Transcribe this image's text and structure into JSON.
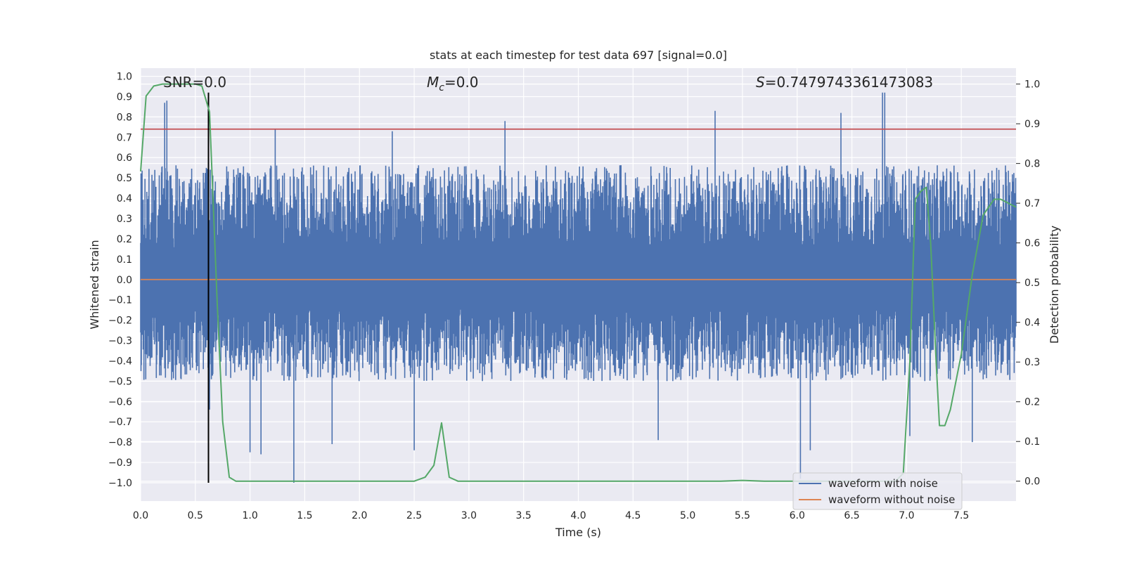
{
  "chart_data": {
    "type": "line",
    "title": "stats at each timestep for test data 697 [signal=0.0]",
    "xlabel": "Time (s)",
    "ylabel": "Whitened strain",
    "y2label": "Detection probability",
    "xlim": [
      0.0,
      8.0
    ],
    "ylim": [
      -1.09,
      1.04
    ],
    "y2lim": [
      -0.05,
      1.04
    ],
    "x_ticks": [
      "0.0",
      "0.5",
      "1.0",
      "1.5",
      "2.0",
      "2.5",
      "3.0",
      "3.5",
      "4.0",
      "4.5",
      "5.0",
      "5.5",
      "6.0",
      "6.5",
      "7.0",
      "7.5"
    ],
    "y_ticks": [
      "1.0",
      "0.9",
      "0.8",
      "0.7",
      "0.6",
      "0.5",
      "0.4",
      "0.3",
      "0.2",
      "0.1",
      "0.0",
      "−0.1",
      "−0.2",
      "−0.3",
      "−0.4",
      "−0.5",
      "−0.6",
      "−0.7",
      "−0.8",
      "−0.9",
      "−1.0"
    ],
    "y2_ticks": [
      "1.0",
      "0.9",
      "0.8",
      "0.7",
      "0.6",
      "0.5",
      "0.4",
      "0.3",
      "0.2",
      "0.1",
      "0.0"
    ],
    "grid": true,
    "legend_placement": "lower-right",
    "annotations": {
      "snr": "SNR=0.0",
      "mc_symbol": "M",
      "mc_sub": "c",
      "mc_value": "=0.0",
      "s_symbol": "S",
      "s_value": "=0.7479743361473083"
    },
    "series": [
      {
        "name": "waveform with noise",
        "color": "#4c72b0",
        "kind": "noise",
        "upper_envelope_typical": 0.45,
        "lower_envelope_typical": -0.4,
        "spikes": [
          {
            "x": 0.22,
            "y": 0.87
          },
          {
            "x": 0.24,
            "y": 0.88
          },
          {
            "x": 1.23,
            "y": 0.74
          },
          {
            "x": 2.3,
            "y": 0.73
          },
          {
            "x": 3.33,
            "y": 0.78
          },
          {
            "x": 5.25,
            "y": 0.83
          },
          {
            "x": 6.4,
            "y": 0.82
          },
          {
            "x": 6.78,
            "y": 0.92
          },
          {
            "x": 6.8,
            "y": 0.92
          },
          {
            "x": 0.63,
            "y": -0.64
          },
          {
            "x": 1.0,
            "y": -0.85
          },
          {
            "x": 1.1,
            "y": -0.86
          },
          {
            "x": 1.4,
            "y": -1.0
          },
          {
            "x": 1.75,
            "y": -0.81
          },
          {
            "x": 2.5,
            "y": -0.84
          },
          {
            "x": 4.73,
            "y": -0.79
          },
          {
            "x": 6.03,
            "y": -0.98
          },
          {
            "x": 6.12,
            "y": -0.84
          },
          {
            "x": 7.03,
            "y": -0.77
          },
          {
            "x": 7.6,
            "y": -0.8
          }
        ]
      },
      {
        "name": "waveform without noise",
        "color": "#dd8452",
        "kind": "flat",
        "value": 0.0
      },
      {
        "name": "Detection probability",
        "color": "#55a868",
        "axis": "right",
        "x": [
          0.0,
          0.05,
          0.12,
          0.2,
          0.3,
          0.4,
          0.5,
          0.56,
          0.63,
          0.7,
          0.75,
          0.81,
          0.87,
          1.0,
          1.5,
          2.0,
          2.5,
          2.6,
          2.68,
          2.75,
          2.82,
          2.9,
          3.5,
          4.0,
          4.5,
          5.0,
          5.3,
          5.5,
          5.7,
          6.0,
          6.5,
          6.9,
          6.97,
          7.03,
          7.08,
          7.13,
          7.18,
          7.22,
          7.27,
          7.3,
          7.35,
          7.4,
          7.5,
          7.6,
          7.7,
          7.8,
          7.86,
          7.93,
          8.0
        ],
        "y": [
          0.78,
          0.97,
          0.995,
          1.0,
          1.0,
          1.0,
          1.0,
          0.995,
          0.93,
          0.45,
          0.15,
          0.01,
          0.0,
          0.0,
          0.0,
          0.0,
          0.0,
          0.01,
          0.04,
          0.147,
          0.01,
          0.0,
          0.0,
          0.0,
          0.0,
          0.0,
          0.0,
          0.002,
          0.0,
          0.0,
          0.0,
          0.0,
          0.02,
          0.3,
          0.71,
          0.73,
          0.74,
          0.6,
          0.3,
          0.14,
          0.14,
          0.18,
          0.32,
          0.52,
          0.67,
          0.71,
          0.71,
          0.7,
          0.69
        ]
      }
    ],
    "hlines": [
      {
        "value": 0.74,
        "color": "#c44e52",
        "axis": "left"
      }
    ],
    "vlines": [
      {
        "x": 0.62,
        "color": "#000000",
        "y_from": -1.0,
        "y_to": 0.92
      }
    ]
  }
}
